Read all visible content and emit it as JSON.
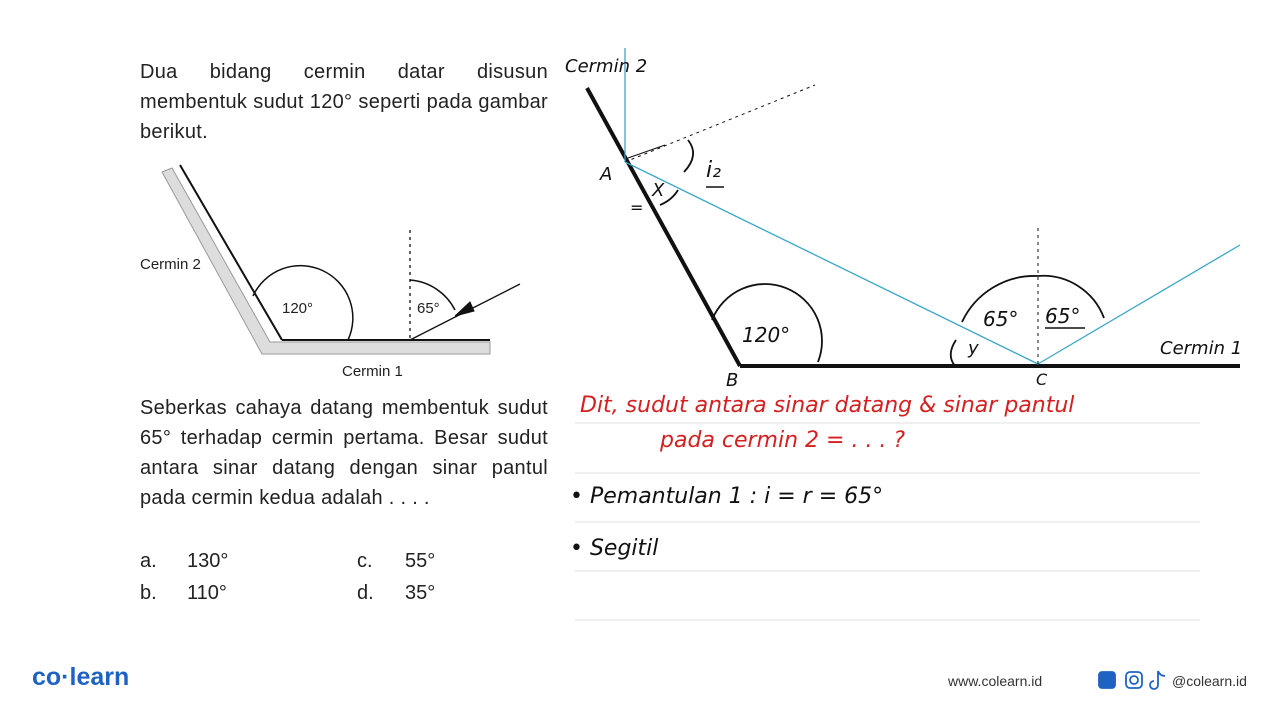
{
  "question": {
    "intro": "Dua bidang cermin datar disusun membentuk sudut 120° seperti pada gambar berikut.",
    "body": "Seberkas cahaya datang membentuk sudut 65° terhadap cermin pertama. Besar sudut antara sinar datang dengan sinar pantul pada cermin kedua adalah . . . .",
    "options": [
      {
        "letter": "a.",
        "text": "130°"
      },
      {
        "letter": "b.",
        "text": "110°"
      },
      {
        "letter": "c.",
        "text": "55°"
      },
      {
        "letter": "d.",
        "text": "35°"
      }
    ]
  },
  "figure": {
    "mirror2_label": "Cermin 2",
    "angle_mirrors": "120°",
    "angle_incidence": "65°",
    "mirror1_label": "Cermin 1"
  },
  "sketch": {
    "mirror2_label": "Cermin 2",
    "point_a": "A",
    "angle_i2": "i₂",
    "angle_x": "X",
    "equal_sign": "=",
    "angle_mirrors": "120°",
    "angle_65_left": "65°",
    "angle_65_right": "65°",
    "angle_y": "y",
    "point_b": "B",
    "point_c": "C",
    "mirror1_label": "Cermin 1"
  },
  "notes": [
    "Dit, sudut antara sinar datang & sinar pantul",
    "pada cermin 2 = . . . ?",
    "• Pemantulan 1 : i = r = 65°",
    "• Segitil"
  ],
  "footer": {
    "brand": "co·learn",
    "website": "www.colearn.id",
    "social": "@colearn.id"
  }
}
